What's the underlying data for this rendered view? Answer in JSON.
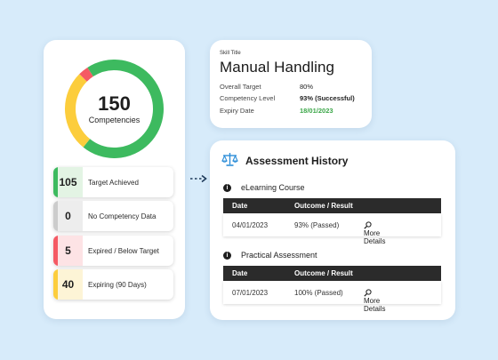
{
  "summary": {
    "total": "150",
    "total_label": "Competencies",
    "donut_segments": [
      {
        "name": "target_achieved",
        "value": 105,
        "color": "#3dba5f"
      },
      {
        "name": "expiring",
        "value": 40,
        "color": "#fccd3c"
      },
      {
        "name": "expired",
        "value": 5,
        "color": "#f55a64"
      }
    ],
    "stats": [
      {
        "value": "105",
        "label": "Target Achieved",
        "color": "#3dba5f",
        "bg": "#e3f4e4"
      },
      {
        "value": "0",
        "label": "No Competency Data",
        "color": "#cccccc",
        "bg": "#ededed"
      },
      {
        "value": "5",
        "label": "Expired / Below Target",
        "color": "#f55a64",
        "bg": "#fde3e5"
      },
      {
        "value": "40",
        "label": "Expiring (90 Days)",
        "color": "#fccd3c",
        "bg": "#fdf4d6"
      }
    ]
  },
  "skill": {
    "small_label": "Skill Title",
    "title": "Manual Handling",
    "rows": [
      {
        "label": "Overall Target",
        "value": "80%"
      },
      {
        "label": "Competency Level",
        "value": "93% (Successful)"
      },
      {
        "label": "Expiry Date",
        "value": "18/01/2023"
      }
    ],
    "expiry_color": "#3aa647"
  },
  "assessment": {
    "title": "Assessment History",
    "icon": "scales-icon",
    "sections": [
      {
        "title": "eLearning Course",
        "headers": [
          "Date",
          "Outcome / Result"
        ],
        "row": {
          "date": "04/01/2023",
          "result": "93% (Passed)",
          "link": "More Details"
        }
      },
      {
        "title": "Practical Assessment",
        "headers": [
          "Date",
          "Outcome / Result"
        ],
        "row": {
          "date": "07/01/2023",
          "result": "100% (Passed)",
          "link": "More Details"
        }
      }
    ]
  }
}
